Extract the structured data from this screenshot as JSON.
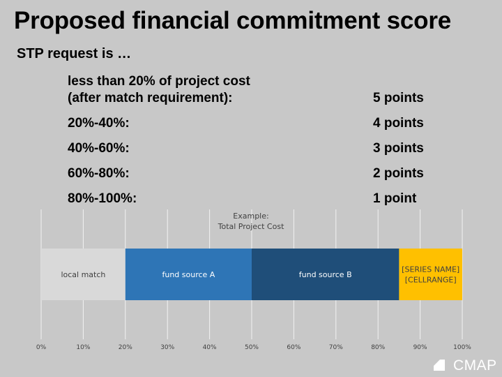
{
  "slide": {
    "title": "Proposed financial commitment score",
    "subtitle": "STP request is …"
  },
  "rules": [
    {
      "label_line1": "less than 20% of project cost",
      "label_line2": "(after match requirement):",
      "points": "5 points"
    },
    {
      "label_line1": "20%-40%:",
      "label_line2": "",
      "points": "4 points"
    },
    {
      "label_line1": "40%-60%:",
      "label_line2": "",
      "points": "3 points"
    },
    {
      "label_line1": "60%-80%:",
      "label_line2": "",
      "points": "2 points"
    },
    {
      "label_line1": "80%-100%:",
      "label_line2": "",
      "points": "1 point"
    }
  ],
  "chart_data": {
    "type": "bar",
    "orientation": "horizontal",
    "stacked": true,
    "title_line1": "Example:",
    "title_line2": "Total Project Cost",
    "xlim": [
      0,
      100
    ],
    "x_ticks": [
      "0%",
      "10%",
      "20%",
      "30%",
      "40%",
      "50%",
      "60%",
      "70%",
      "80%",
      "90%",
      "100%"
    ],
    "segments": [
      {
        "label": "local match",
        "start": 0,
        "end": 20,
        "color": "#d9d9d9",
        "text_color": "#404040"
      },
      {
        "label": "fund source A",
        "start": 20,
        "end": 50,
        "color": "#2e75b6",
        "text_color": "#ffffff"
      },
      {
        "label": "fund source B",
        "start": 50,
        "end": 85,
        "color": "#1f4e79",
        "text_color": "#ffffff"
      },
      {
        "label": "[SERIES NAME]\n[CELLRANGE]",
        "start": 85,
        "end": 100,
        "color": "#ffc000",
        "text_color": "#404040"
      }
    ],
    "grid": true
  },
  "logo": {
    "text": "CMAP"
  }
}
